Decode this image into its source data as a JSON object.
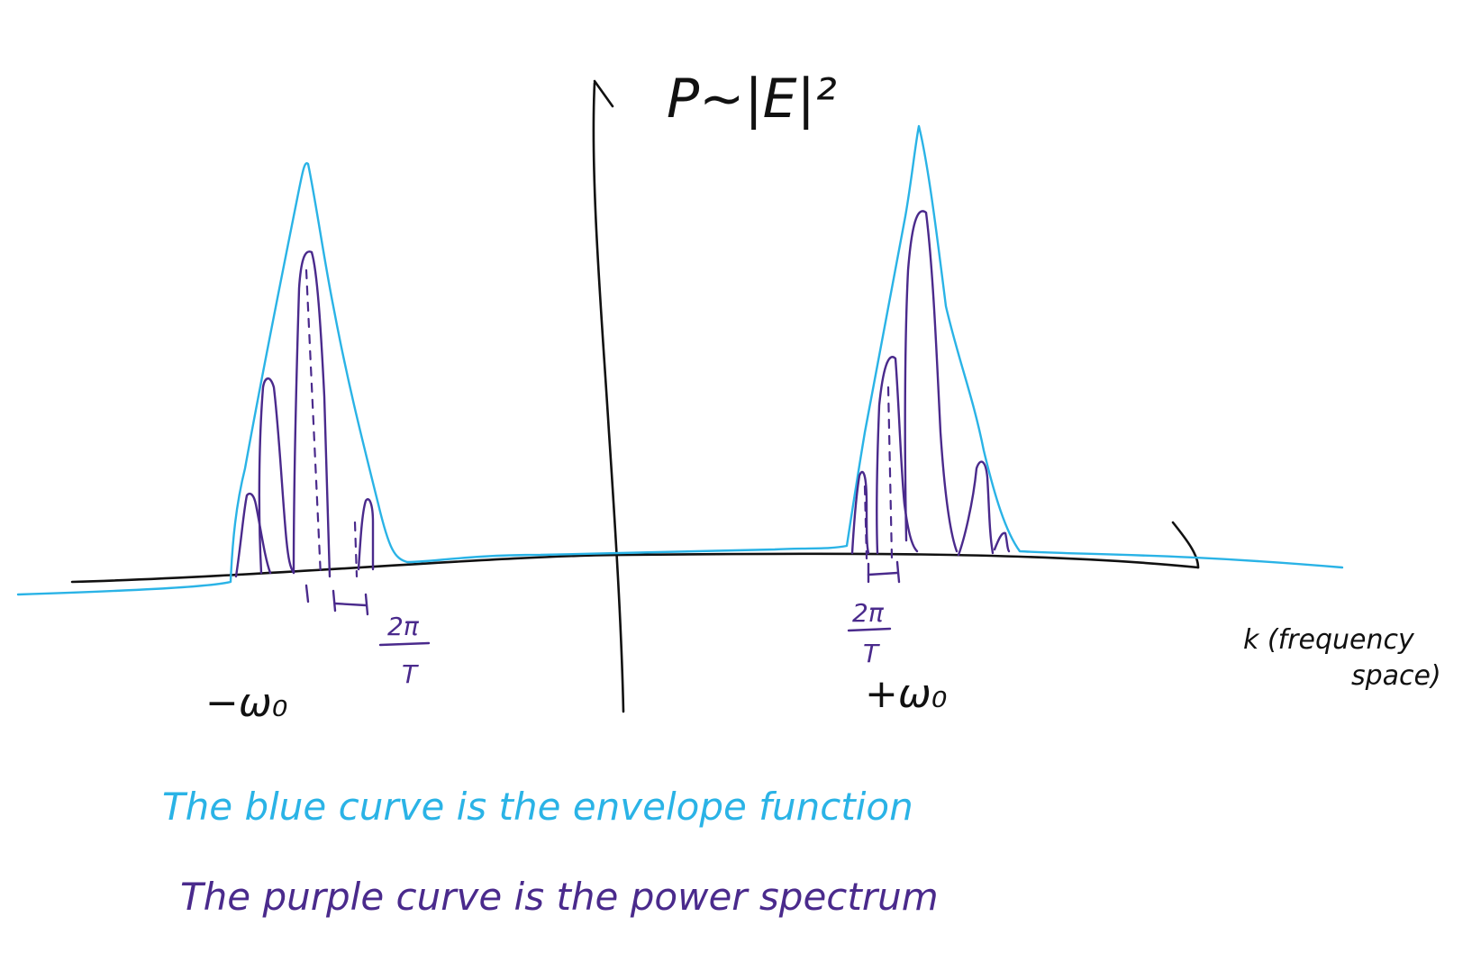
{
  "axis": {
    "y_label": "P~|E|²",
    "x_label_main": "k (frequency",
    "x_label_second": "space)"
  },
  "peaks": {
    "left_label": "−ω₀",
    "right_label": "+ω₀",
    "spacing_numerator": "2π",
    "spacing_denominator": "T"
  },
  "notes": {
    "blue": "The blue curve is the envelope function",
    "purple": "The purple curve is the power spectrum"
  },
  "colors": {
    "axes": "#111111",
    "envelope": "#2ab3e6",
    "spectrum": "#4a2a8c"
  }
}
